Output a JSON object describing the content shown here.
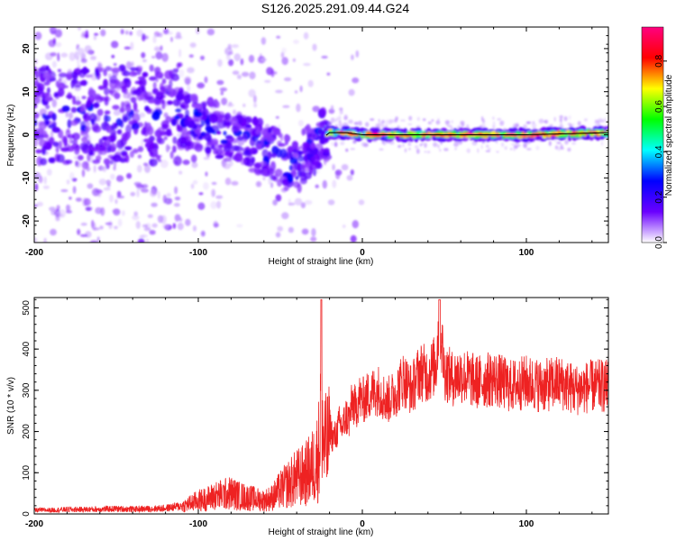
{
  "figure": {
    "title": "S126.2025.291.09.44.G24"
  },
  "chart_data": [
    {
      "type": "heatmap",
      "title": "S126.2025.291.09.44.G24",
      "xlabel": "Height of straight line (km)",
      "ylabel": "Frequency (Hz)",
      "xlim": [
        -200,
        150
      ],
      "ylim": [
        -25,
        25
      ],
      "x_ticks": [
        -200,
        -100,
        0,
        100
      ],
      "y_ticks": [
        -20,
        -10,
        0,
        10,
        20
      ],
      "grid": false,
      "colorbar": {
        "label": "Normalized spectral amplitude",
        "range": [
          0,
          0.95
        ],
        "ticks": [
          0,
          0.2,
          0.4,
          0.6,
          0.8
        ],
        "tick_labels": [
          "0.0",
          "0.2",
          "0.4",
          "0.6",
          "0.8"
        ],
        "colormap": [
          "#ffffff",
          "#6a00ff",
          "#0000ff",
          "#00ffff",
          "#00ff00",
          "#ffff00",
          "#ff0000",
          "#ff0080"
        ]
      },
      "ridge": {
        "x": [
          -110,
          -100,
          -90,
          -80,
          -70,
          -60,
          -55,
          -50,
          -45,
          -40,
          -35,
          -30,
          -25,
          -20,
          -10,
          0,
          20,
          50,
          100,
          150
        ],
        "y": [
          3.5,
          2.5,
          1.5,
          -1,
          -2,
          -3,
          -4,
          -5.5,
          -7,
          -8,
          -4.5,
          -3.5,
          -1,
          0.5,
          0.5,
          0,
          0,
          0,
          0,
          0.5
        ]
      }
    },
    {
      "type": "line",
      "xlabel": "Height of straight line (km)",
      "ylabel": "SNR (10 * v/v)",
      "xlim": [
        -200,
        150
      ],
      "ylim": [
        0,
        525
      ],
      "x_ticks": [
        -200,
        -100,
        0,
        100
      ],
      "y_ticks": [
        0,
        100,
        200,
        300,
        400,
        500
      ],
      "grid": false,
      "color": "#ee2222",
      "series": [
        {
          "x": [
            -200,
            -190,
            -180,
            -170,
            -160,
            -150,
            -140,
            -130,
            -120,
            -110,
            -100,
            -95,
            -90,
            -85,
            -80,
            -75,
            -70,
            -65,
            -60,
            -55,
            -50,
            -45,
            -40,
            -35,
            -30,
            -28,
            -26,
            -25,
            -24,
            -22,
            -20,
            -18,
            -16,
            -14,
            -12,
            -10,
            -8,
            -6,
            -4,
            -2,
            0,
            5,
            10,
            15,
            20,
            25,
            30,
            35,
            40,
            45,
            47,
            50,
            55,
            60,
            70,
            80,
            90,
            100,
            110,
            120,
            130,
            140,
            150
          ],
          "y": [
            12,
            12,
            14,
            14,
            15,
            16,
            15,
            16,
            18,
            25,
            45,
            50,
            60,
            65,
            70,
            60,
            55,
            50,
            45,
            55,
            80,
            100,
            120,
            130,
            160,
            180,
            230,
            500,
            240,
            220,
            240,
            200,
            210,
            240,
            230,
            260,
            250,
            300,
            280,
            310,
            300,
            320,
            330,
            300,
            320,
            360,
            330,
            380,
            370,
            400,
            520,
            380,
            360,
            370,
            350,
            360,
            340,
            350,
            340,
            350,
            330,
            340,
            340
          ]
        }
      ]
    }
  ]
}
